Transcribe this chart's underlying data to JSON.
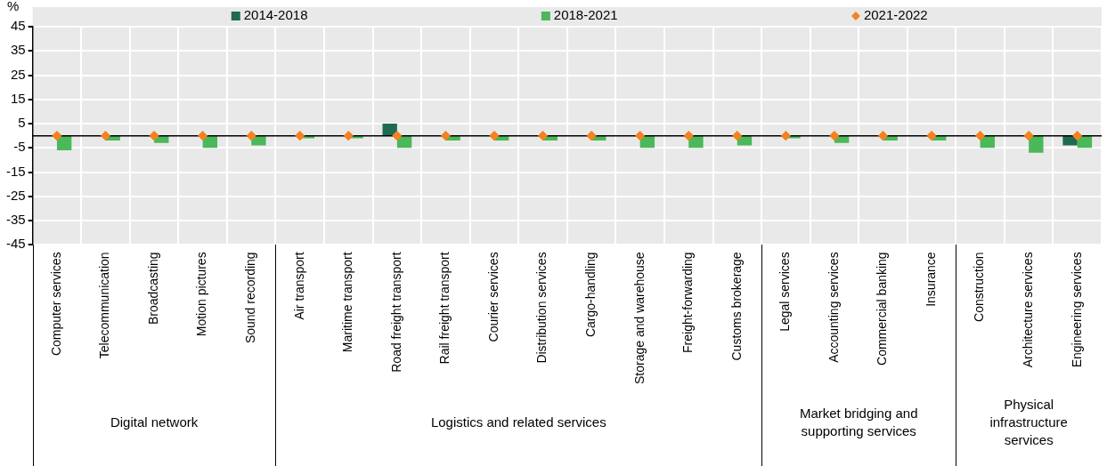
{
  "chart_data": {
    "type": "bar",
    "ylabel": "%",
    "categories": [
      "Computer services",
      "Telecommunication",
      "Broadcasting",
      "Motion pictures",
      "Sound recording",
      "Air transport",
      "Maritime transport",
      "Road freight transport",
      "Rail freight transport",
      "Courier services",
      "Distribution services",
      "Cargo-handling",
      "Storage and warehouse",
      "Freight-forwarding",
      "Customs brokerage",
      "Legal services",
      "Accounting services",
      "Commercial banking",
      "Insurance",
      "Construction",
      "Architecture services",
      "Engineering services"
    ],
    "series": [
      {
        "name": "2014-2018",
        "color": "#1e6b52",
        "values": [
          0,
          0,
          0,
          0,
          0,
          0,
          0,
          5,
          0,
          0,
          0,
          0,
          0,
          0,
          0,
          0,
          0,
          0,
          0,
          0,
          0,
          -4
        ]
      },
      {
        "name": "2018-2021",
        "color": "#4bb85a",
        "values": [
          -6,
          -2,
          -3,
          -5,
          -4,
          -1,
          -1,
          -5,
          -2,
          -2,
          -2,
          -2,
          -5,
          -5,
          -4,
          -1,
          -3,
          -2,
          -2,
          -5,
          -7,
          -5
        ]
      },
      {
        "name": "2021-2022",
        "type": "scatter",
        "color": "#f58220",
        "marker": "diamond",
        "values": [
          0,
          0,
          0,
          0,
          0,
          0,
          0,
          0,
          0,
          0,
          0,
          0,
          0,
          0,
          0,
          0,
          0,
          0,
          0,
          0,
          0,
          0
        ]
      }
    ],
    "annotations": [
      "Digital network",
      "Logistics and related services",
      "Market bridging and supporting services",
      "Physical infrastructure services"
    ],
    "ylim": [
      -45,
      45
    ],
    "yticks": [
      -45,
      -35,
      -25,
      -15,
      -5,
      5,
      15,
      25,
      35,
      45
    ],
    "grid": true,
    "legend": "top"
  }
}
